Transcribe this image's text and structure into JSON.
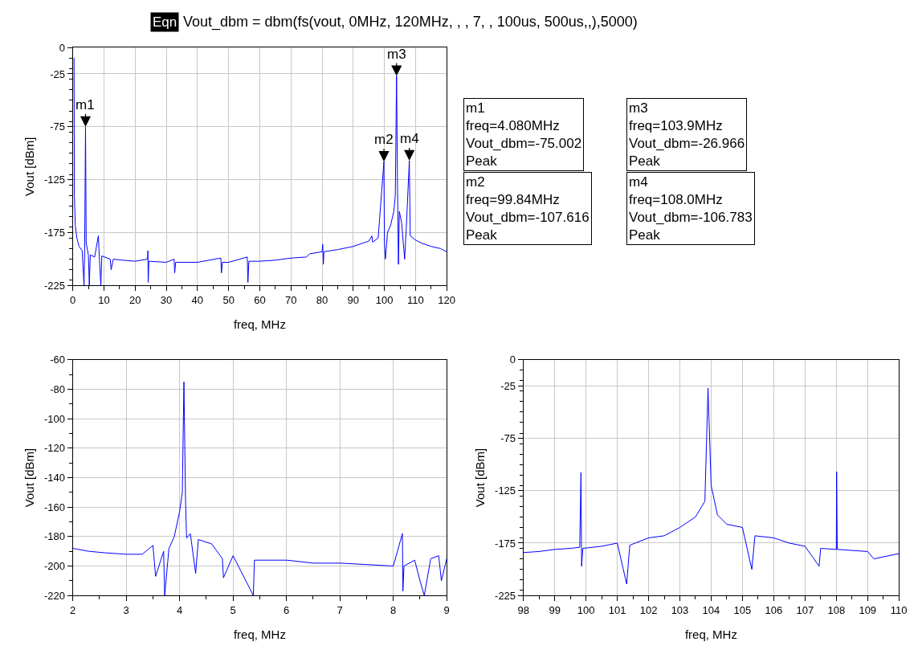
{
  "chart_data": [
    {
      "type": "line",
      "title": "Vout_dbm = dbm(fs(vout, 0MHz, 120MHz, , , 7, , 100us, 500us,,),5000)",
      "xlabel": "freq, MHz",
      "ylabel": "Vout [dBm]",
      "annotations": [
        "Eqn",
        "m1\nfreq=4.080MHz\nVout_dbm=-75.002\nPeak",
        "m3\nfreq=103.9MHz\nVout_dbm=-26.966\nPeak",
        "m2\nfreq=99.84MHz\nVout_dbm=-107.616\nPeak",
        "m4\nfreq=108.0MHz\nVout_dbm=-106.783\nPeak",
        {
          "text": "m1",
          "x": 4.08,
          "y": -75
        },
        {
          "text": "m2",
          "x": 99.84,
          "y": -108
        },
        {
          "text": "m3",
          "x": 103.9,
          "y": -27
        },
        {
          "text": "m4",
          "x": 108.0,
          "y": -107
        }
      ],
      "series": [
        {
          "color": "#0000ff",
          "x": [
            0.4,
            0.5,
            0.8,
            1.3,
            2,
            3,
            3.6,
            3.8,
            4.08,
            4.3,
            5,
            5.3,
            5.6,
            7,
            8.2,
            8.5,
            9,
            9.3,
            12,
            12.3,
            13,
            16,
            20,
            24,
            24.1,
            24.2,
            24.4,
            30,
            32.5,
            32.7,
            33,
            40,
            47.5,
            47.7,
            48,
            50,
            56,
            56.2,
            56.5,
            60,
            65,
            70,
            75,
            76,
            80,
            80.2,
            80.4,
            80.6,
            85,
            90,
            95,
            96,
            96.2,
            98,
            99.84,
            100,
            100.3,
            101,
            102,
            103,
            103.5,
            103.9,
            104.2,
            104.5,
            104.8,
            105.5,
            106.5,
            107,
            108,
            108.3,
            110,
            112,
            115,
            118,
            120
          ],
          "values": [
            -10,
            -140,
            -168,
            -180,
            -188,
            -192,
            -225,
            -192,
            -75,
            -185,
            -196,
            -225,
            -196,
            -198,
            -178,
            -198,
            -225,
            -197,
            -200,
            -210,
            -200,
            -201,
            -202,
            -200,
            -192,
            -222,
            -202,
            -203,
            -200,
            -213,
            -203,
            -203,
            -199,
            -213,
            -203,
            -203,
            -198,
            -222,
            -202,
            -202,
            -201,
            -199,
            -198,
            -195,
            -193,
            -186,
            -205,
            -193,
            -191,
            -188,
            -183,
            -178,
            -184,
            -180,
            -108,
            -185,
            -200,
            -175,
            -168,
            -155,
            -140,
            -27,
            -130,
            -205,
            -155,
            -165,
            -200,
            -172,
            -107,
            -178,
            -182,
            -185,
            -188,
            -190,
            -193
          ]
        }
      ],
      "xlim": [
        0,
        120
      ],
      "xticks": [
        0,
        10,
        20,
        30,
        40,
        50,
        60,
        70,
        80,
        90,
        100,
        110,
        120
      ],
      "ylim": [
        -225,
        0
      ],
      "yticks": [
        -225,
        -175,
        -125,
        -75,
        -25,
        0
      ],
      "grid": true,
      "marker": "none",
      "line_style": "solid"
    },
    {
      "type": "line",
      "xlabel": "freq, MHz",
      "ylabel": "Vout [dBm]",
      "series": [
        {
          "color": "#0000ff",
          "x": [
            2,
            2.3,
            2.6,
            3,
            3.3,
            3.5,
            3.55,
            3.7,
            3.72,
            3.8,
            3.9,
            4.0,
            4.05,
            4.08,
            4.11,
            4.13,
            4.2,
            4.3,
            4.35,
            4.6,
            4.8,
            4.82,
            5,
            5.38,
            5.4,
            6,
            6.5,
            7,
            7.5,
            8,
            8.17,
            8.18,
            8.2,
            8.4,
            8.5,
            8.58,
            8.7,
            8.85,
            8.9,
            9
          ],
          "values": [
            -188,
            -190,
            -191,
            -192,
            -192,
            -186,
            -207,
            -190,
            -220,
            -188,
            -180,
            -163,
            -150,
            -75,
            -155,
            -181,
            -178,
            -205,
            -182,
            -185,
            -195,
            -208,
            -193,
            -220,
            -196,
            -196,
            -198,
            -198,
            -199,
            -200,
            -178,
            -217,
            -200,
            -196,
            -210,
            -220,
            -195,
            -193,
            -210,
            -195
          ]
        }
      ],
      "xlim": [
        2,
        9
      ],
      "xticks": [
        2,
        3,
        4,
        5,
        6,
        7,
        8,
        9
      ],
      "ylim": [
        -220,
        -60
      ],
      "yticks": [
        -220,
        -200,
        -180,
        -160,
        -140,
        -120,
        -100,
        -80,
        -60
      ],
      "grid": true,
      "marker": "none",
      "line_style": "solid"
    },
    {
      "type": "line",
      "xlabel": "freq, MHz",
      "ylabel": "Vout [dBm]",
      "series": [
        {
          "color": "#0000ff",
          "x": [
            98,
            98.5,
            99,
            99.5,
            99.8,
            99.84,
            99.86,
            99.9,
            100.5,
            101,
            101.3,
            101.4,
            102,
            102.5,
            103,
            103.5,
            103.8,
            103.9,
            104,
            104.2,
            104.5,
            105,
            105.3,
            105.4,
            106,
            106.5,
            107,
            107.45,
            107.5,
            108,
            108.01,
            108.03,
            109,
            109.2,
            110
          ],
          "values": [
            -184,
            -183,
            -181,
            -180,
            -179,
            -107.6,
            -197,
            -180,
            -178,
            -175,
            -214,
            -177,
            -170,
            -168,
            -160,
            -150,
            -135,
            -27,
            -120,
            -148,
            -157,
            -160,
            -200,
            -168,
            -170,
            -175,
            -178,
            -197,
            -180,
            -181,
            -106.8,
            -181,
            -183,
            -190,
            -185
          ]
        }
      ],
      "xlim": [
        98,
        110
      ],
      "xticks": [
        98,
        99,
        100,
        101,
        102,
        103,
        104,
        105,
        106,
        107,
        108,
        109,
        110
      ],
      "ylim": [
        -225,
        0
      ],
      "yticks": [
        -225,
        -175,
        -125,
        -75,
        -25,
        0
      ],
      "grid": true,
      "marker": "none",
      "line_style": "solid"
    }
  ]
}
